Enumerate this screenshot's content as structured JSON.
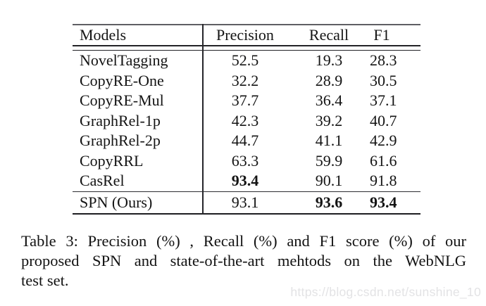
{
  "table": {
    "headers": {
      "models": "Models",
      "precision": "Precision",
      "recall": "Recall",
      "f1": "F1"
    },
    "rows": [
      {
        "model": "NovelTagging",
        "precision": {
          "text": "52.5",
          "bold": false
        },
        "recall": {
          "text": "19.3",
          "bold": false
        },
        "f1": {
          "text": "28.3",
          "bold": false
        }
      },
      {
        "model": "CopyRE-One",
        "precision": {
          "text": "32.2",
          "bold": false
        },
        "recall": {
          "text": "28.9",
          "bold": false
        },
        "f1": {
          "text": "30.5",
          "bold": false
        }
      },
      {
        "model": "CopyRE-Mul",
        "precision": {
          "text": "37.7",
          "bold": false
        },
        "recall": {
          "text": "36.4",
          "bold": false
        },
        "f1": {
          "text": "37.1",
          "bold": false
        }
      },
      {
        "model": "GraphRel-1p",
        "precision": {
          "text": "42.3",
          "bold": false
        },
        "recall": {
          "text": "39.2",
          "bold": false
        },
        "f1": {
          "text": "40.7",
          "bold": false
        }
      },
      {
        "model": "GraphRel-2p",
        "precision": {
          "text": "44.7",
          "bold": false
        },
        "recall": {
          "text": "41.1",
          "bold": false
        },
        "f1": {
          "text": "42.9",
          "bold": false
        }
      },
      {
        "model": "CopyRRL",
        "precision": {
          "text": "63.3",
          "bold": false
        },
        "recall": {
          "text": "59.9",
          "bold": false
        },
        "f1": {
          "text": "61.6",
          "bold": false
        }
      },
      {
        "model": "CasRel",
        "precision": {
          "text": "93.4",
          "bold": true
        },
        "recall": {
          "text": "90.1",
          "bold": false
        },
        "f1": {
          "text": "91.8",
          "bold": false
        }
      }
    ],
    "highlight_row": {
      "model": "SPN (Ours)",
      "precision": {
        "text": "93.1",
        "bold": false
      },
      "recall": {
        "text": "93.6",
        "bold": true
      },
      "f1": {
        "text": "93.4",
        "bold": true
      }
    }
  },
  "caption": {
    "lines": [
      "Table 3: Precision (%) , Recall (%) and F1 score (%) of our",
      "proposed SPN and state-of-the-art mehtods on the WebNLG",
      "test set."
    ]
  },
  "watermark": {
    "text": "https://blog.csdn.net/sunshine_10"
  },
  "colors": {
    "text": "#141414",
    "rule": "#222226",
    "top_rule": "#5f5f63",
    "watermark": "#e3e3e5",
    "background": "#ffffff"
  }
}
